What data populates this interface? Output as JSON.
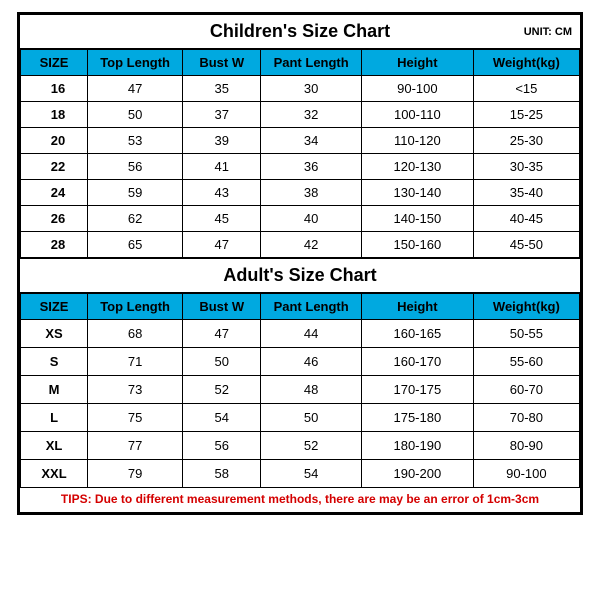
{
  "unit_label": "UNIT: CM",
  "children": {
    "title": "Children's Size Chart",
    "columns": [
      "SIZE",
      "Top Length",
      "Bust W",
      "Pant Length",
      "Height",
      "Weight(kg)"
    ],
    "rows": [
      [
        "16",
        "47",
        "35",
        "30",
        "90-100",
        "<15"
      ],
      [
        "18",
        "50",
        "37",
        "32",
        "100-110",
        "15-25"
      ],
      [
        "20",
        "53",
        "39",
        "34",
        "110-120",
        "25-30"
      ],
      [
        "22",
        "56",
        "41",
        "36",
        "120-130",
        "30-35"
      ],
      [
        "24",
        "59",
        "43",
        "38",
        "130-140",
        "35-40"
      ],
      [
        "26",
        "62",
        "45",
        "40",
        "140-150",
        "40-45"
      ],
      [
        "28",
        "65",
        "47",
        "42",
        "150-160",
        "45-50"
      ]
    ]
  },
  "adult": {
    "title": "Adult's Size Chart",
    "columns": [
      "SIZE",
      "Top Length",
      "Bust W",
      "Pant Length",
      "Height",
      "Weight(kg)"
    ],
    "rows": [
      [
        "XS",
        "68",
        "47",
        "44",
        "160-165",
        "50-55"
      ],
      [
        "S",
        "71",
        "50",
        "46",
        "160-170",
        "55-60"
      ],
      [
        "M",
        "73",
        "52",
        "48",
        "170-175",
        "60-70"
      ],
      [
        "L",
        "75",
        "54",
        "50",
        "175-180",
        "70-80"
      ],
      [
        "XL",
        "77",
        "56",
        "52",
        "180-190",
        "80-90"
      ],
      [
        "XXL",
        "79",
        "58",
        "54",
        "190-200",
        "90-100"
      ]
    ]
  },
  "tip": "TIPS: Due to different measurement methods, there are may be an error of 1cm-3cm"
}
